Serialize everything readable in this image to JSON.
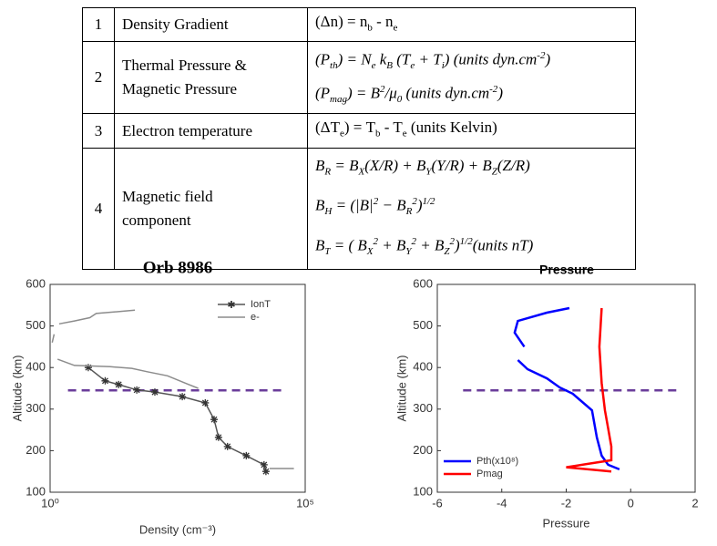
{
  "table": {
    "rows": [
      {
        "number": "1",
        "parameter": [
          "Density Gradient"
        ],
        "formula": [
          [
            "(Δn) = n",
            {
              "sub": "b"
            },
            "  -  n",
            {
              "sub": "e"
            }
          ]
        ]
      },
      {
        "number": "2",
        "parameter": [
          "Thermal Pressure &",
          "Magnetic Pressure"
        ],
        "formula": [
          [
            "(P",
            {
              "sub": "th"
            },
            ") = N",
            {
              "sub": "e"
            },
            " k",
            {
              "sub": "B"
            },
            " (T",
            {
              "sub": "e"
            },
            " + T",
            {
              "sub": "i"
            },
            ") (units dyn.cm",
            {
              "sup": "-2"
            },
            ")"
          ],
          [
            "(P",
            {
              "sub": "mag"
            },
            ") = B",
            {
              "sup": "2"
            },
            "/μ",
            {
              "sub": "0"
            },
            " (units dyn.cm",
            {
              "sup": "-2"
            },
            ")"
          ]
        ]
      },
      {
        "number": "3",
        "parameter": [
          "Electron temperature"
        ],
        "formula": [
          [
            "(ΔT",
            {
              "sub": "e"
            },
            ") = T",
            {
              "sub": "b"
            },
            "  -  T",
            {
              "sub": "e"
            },
            " (units Kelvin)"
          ]
        ]
      },
      {
        "number": "4",
        "parameter": [
          "Magnetic field",
          "component"
        ],
        "formula": [
          [
            "B",
            {
              "sub": "R"
            },
            " = B",
            {
              "sub": "X"
            },
            "(X/R) + B",
            {
              "sub": "Y"
            },
            "(Y/R) + B",
            {
              "sub": "Z"
            },
            "(Z/R)"
          ],
          [
            "B",
            {
              "sub": "H"
            },
            " = (|B|",
            {
              "sup": "2"
            },
            " − B",
            {
              "sub": "R"
            },
            {
              "sup": "2"
            },
            ")",
            {
              "sup": "1/2"
            }
          ],
          [
            "B",
            {
              "sub": "T"
            },
            " = ( B",
            {
              "sub": "X"
            },
            {
              "sup": "2"
            },
            " + B",
            {
              "sub": "Y"
            },
            {
              "sup": "2"
            },
            " + B",
            {
              "sub": "Z"
            },
            {
              "sup": "2"
            },
            ")",
            {
              "sup": "1/2"
            },
            "(units nT)"
          ]
        ]
      }
    ]
  },
  "chart_data": [
    {
      "type": "line",
      "title": "Orb 8986",
      "x_label": "Density (cm⁻³)",
      "y_label": "Altitude (km)",
      "xlog": true,
      "xlim": [
        1,
        100000
      ],
      "xticks": [
        {
          "value": 1,
          "label": "10⁰"
        },
        {
          "value": 100000,
          "label": "10⁵"
        }
      ],
      "ylim": [
        100,
        600
      ],
      "yticks": [
        100,
        200,
        300,
        400,
        500,
        600
      ],
      "legend": "upper right",
      "reference_line": {
        "y": 345,
        "color": "#6a3d9a"
      },
      "series": [
        {
          "name": "IonT",
          "color": "#555555",
          "marker": "asterisk",
          "x": [
            5.6,
            12,
            22,
            50,
            113,
            390,
            1100,
            1640,
            2000,
            3000,
            7000,
            15600,
            17000
          ],
          "values": [
            400,
            368,
            359,
            346,
            341,
            330,
            315,
            275,
            232,
            210,
            188,
            166,
            150
          ]
        },
        {
          "name": "e-",
          "color": "#8c8c8c",
          "marker": "none",
          "x": [
            46,
            8,
            6,
            3,
            1.5,
            null,
            1.2,
            1.1,
            null,
            1.4,
            3,
            15,
            40,
            80,
            200,
            500,
            800,
            null,
            20000,
            60000
          ],
          "values": [
            538,
            530,
            520,
            512,
            505,
            null,
            480,
            460,
            null,
            420,
            405,
            402,
            398,
            390,
            380,
            360,
            350,
            null,
            157,
            157
          ]
        }
      ]
    },
    {
      "type": "line",
      "title": "Pressure",
      "x_label": "Pressure",
      "y_label": "Altitude (km)",
      "xlog": false,
      "xlim": [
        -6,
        2
      ],
      "xticks": [
        -6,
        -4,
        -2,
        0,
        2
      ],
      "ylim": [
        100,
        600
      ],
      "yticks": [
        100,
        200,
        300,
        400,
        500,
        600
      ],
      "legend": "lower left",
      "reference_line": {
        "y": 345,
        "color": "#6a3d9a"
      },
      "series": [
        {
          "name": "Pth(x10⁸)",
          "color": "#0000ff",
          "marker": "none",
          "x": [
            -1.9,
            -2.6,
            -3.5,
            -3.6,
            -3.3,
            null,
            -3.5,
            -3.2,
            -2.6,
            -2.2,
            -1.8,
            -1.2,
            -1.05,
            -0.9,
            -0.7,
            -0.35
          ],
          "values": [
            543,
            532,
            512,
            484,
            450,
            null,
            418,
            396,
            374,
            352,
            337,
            297,
            232,
            188,
            166,
            155
          ]
        },
        {
          "name": "Pmag",
          "color": "#ff0000",
          "marker": "none",
          "x": [
            -0.9,
            -0.97,
            -0.9,
            -0.8,
            -0.7,
            -0.6,
            -0.6,
            -2,
            -0.6
          ],
          "values": [
            543,
            450,
            363,
            297,
            254,
            210,
            177,
            160,
            150
          ]
        }
      ]
    }
  ]
}
